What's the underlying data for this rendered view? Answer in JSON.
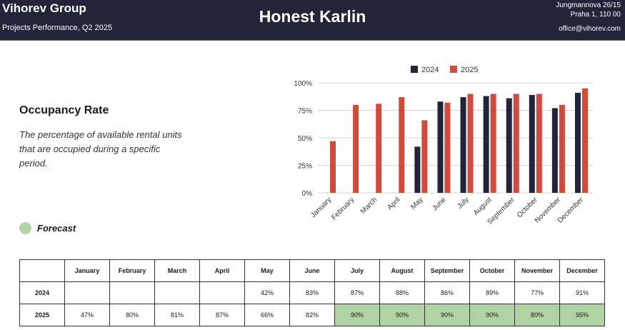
{
  "header": {
    "company": "Vihorev Group",
    "subtitle": "Projects Performance, Q2 2025",
    "project": "Honest Karlin",
    "address_line1": "Jungmannova 26/15",
    "address_line2": "Praha 1, 110 00",
    "email": "office@vihorev.com"
  },
  "metric": {
    "title": "Occupancy Rate",
    "description": "The percentage of available rental units that are occupied during a specific period."
  },
  "forecast": {
    "label": "Forecast",
    "color": "#b1d2a2"
  },
  "chart_data": {
    "type": "bar",
    "categories": [
      "January",
      "February",
      "March",
      "April",
      "May",
      "June",
      "July",
      "August",
      "September",
      "October",
      "November",
      "December"
    ],
    "series": [
      {
        "name": "2024",
        "color": "#23233a",
        "values": [
          null,
          null,
          null,
          null,
          42,
          83,
          87,
          88,
          86,
          89,
          77,
          91
        ]
      },
      {
        "name": "2025",
        "color": "#cf4b3c",
        "values": [
          47,
          80,
          81,
          87,
          66,
          82,
          90,
          90,
          90,
          90,
          80,
          95
        ]
      }
    ],
    "yticks": [
      "0%",
      "25%",
      "50%",
      "75%",
      "100%"
    ],
    "ylim": [
      0,
      100
    ],
    "legend": "top",
    "grid": true
  },
  "table": {
    "columns": [
      "January",
      "February",
      "March",
      "April",
      "May",
      "June",
      "July",
      "August",
      "September",
      "October",
      "November",
      "December"
    ],
    "rows": [
      {
        "label": "2024",
        "values": [
          "",
          "",
          "",
          "",
          "42%",
          "83%",
          "87%",
          "88%",
          "86%",
          "89%",
          "77%",
          "91%"
        ],
        "forecast": [
          false,
          false,
          false,
          false,
          false,
          false,
          false,
          false,
          false,
          false,
          false,
          false
        ]
      },
      {
        "label": "2025",
        "values": [
          "47%",
          "80%",
          "81%",
          "87%",
          "66%",
          "82%",
          "90%",
          "90%",
          "90%",
          "90%",
          "80%",
          "95%"
        ],
        "forecast": [
          false,
          false,
          false,
          false,
          false,
          false,
          true,
          true,
          true,
          true,
          true,
          true
        ]
      }
    ]
  }
}
